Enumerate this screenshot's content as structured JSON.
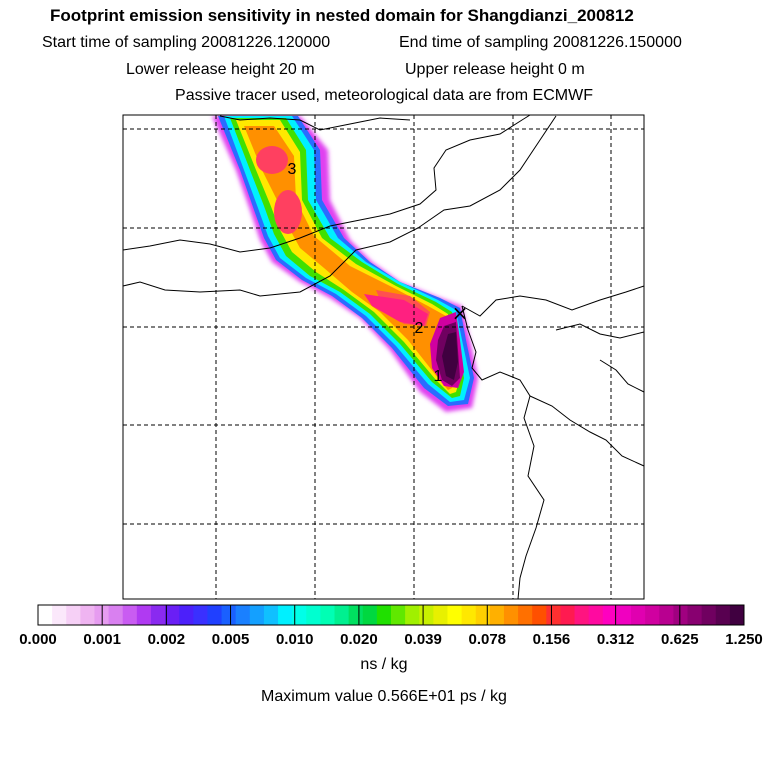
{
  "header": {
    "title": "Footprint emission sensitivity in nested domain for Shangdianzi_200812",
    "start_time": "Start time of sampling 20081226.120000",
    "end_time": "End time of sampling 20081226.150000",
    "lower_height": "Lower release height   20 m",
    "upper_height": "Upper release height    0 m",
    "tracer_note": "Passive tracer used, meteorological data are from ECMWF"
  },
  "map": {
    "receptor_marker": "×",
    "plume_labels": [
      "1",
      "2",
      "3"
    ],
    "coastline_color": "#000000",
    "grid_color": "#000000"
  },
  "colorbar": {
    "tick_labels": [
      "0.000",
      "0.001",
      "0.002",
      "0.005",
      "0.010",
      "0.020",
      "0.039",
      "0.078",
      "0.156",
      "0.312",
      "0.625",
      "1.250"
    ],
    "colors": [
      "#ffffff",
      "#fbe8fb",
      "#f6d0f6",
      "#efb4f1",
      "#e69cf0",
      "#d980f0",
      "#c95cf2",
      "#b03af2",
      "#8a2af0",
      "#6a1ff5",
      "#4c20fa",
      "#3a30ff",
      "#2040ff",
      "#1a60ff",
      "#1a80ff",
      "#14a0ff",
      "#10c0ff",
      "#00f0ff",
      "#00ffe8",
      "#00ffd0",
      "#00ffb4",
      "#00f090",
      "#00e060",
      "#00d840",
      "#20e000",
      "#60e800",
      "#a0f000",
      "#c8f000",
      "#e8f000",
      "#ffff00",
      "#ffe800",
      "#ffd000",
      "#ffb000",
      "#ff9000",
      "#ff7000",
      "#ff5000",
      "#ff3030",
      "#ff1a50",
      "#ff1480",
      "#ff0aa0",
      "#ff00c0",
      "#f000c0",
      "#e000b0",
      "#d000a0",
      "#b80090",
      "#a00080",
      "#880070",
      "#700060",
      "#580050",
      "#400040"
    ],
    "units": "ns / kg",
    "max_value": "Maximum value  0.566E+01 ps / kg"
  }
}
